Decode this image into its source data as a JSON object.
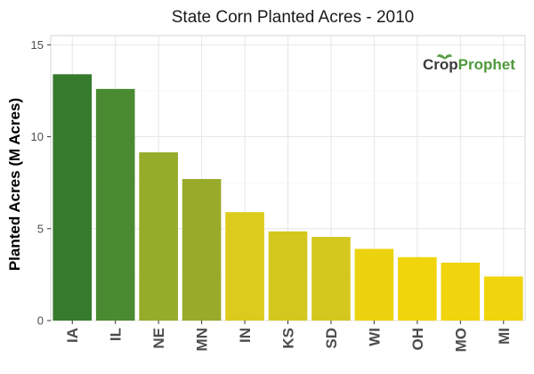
{
  "chart_data": {
    "type": "bar",
    "title": "State Corn Planted Acres - 2010",
    "xlabel": "",
    "ylabel": "Planted Acres (M Acres)",
    "categories": [
      "IA",
      "IL",
      "NE",
      "MN",
      "IN",
      "KS",
      "SD",
      "WI",
      "OH",
      "MO",
      "MI"
    ],
    "values": [
      13.4,
      12.6,
      9.15,
      7.7,
      5.9,
      4.85,
      4.55,
      3.9,
      3.45,
      3.15,
      2.4
    ],
    "ylim": [
      0,
      15.5
    ],
    "yticks": [
      0,
      5,
      10,
      15
    ],
    "grid": true,
    "colors": [
      "#367a2d",
      "#4a8a30",
      "#95ab2a",
      "#98aa2a",
      "#dccb1c",
      "#d4c81e",
      "#d4c81e",
      "#ecd30f",
      "#f0d50c",
      "#f0d40d",
      "#f0d40d"
    ]
  },
  "logo": {
    "crop_text": "Crop",
    "prophet_text": "Prophet",
    "crop_color": "#3a3a3a",
    "prophet_color": "#4e9a3a"
  }
}
